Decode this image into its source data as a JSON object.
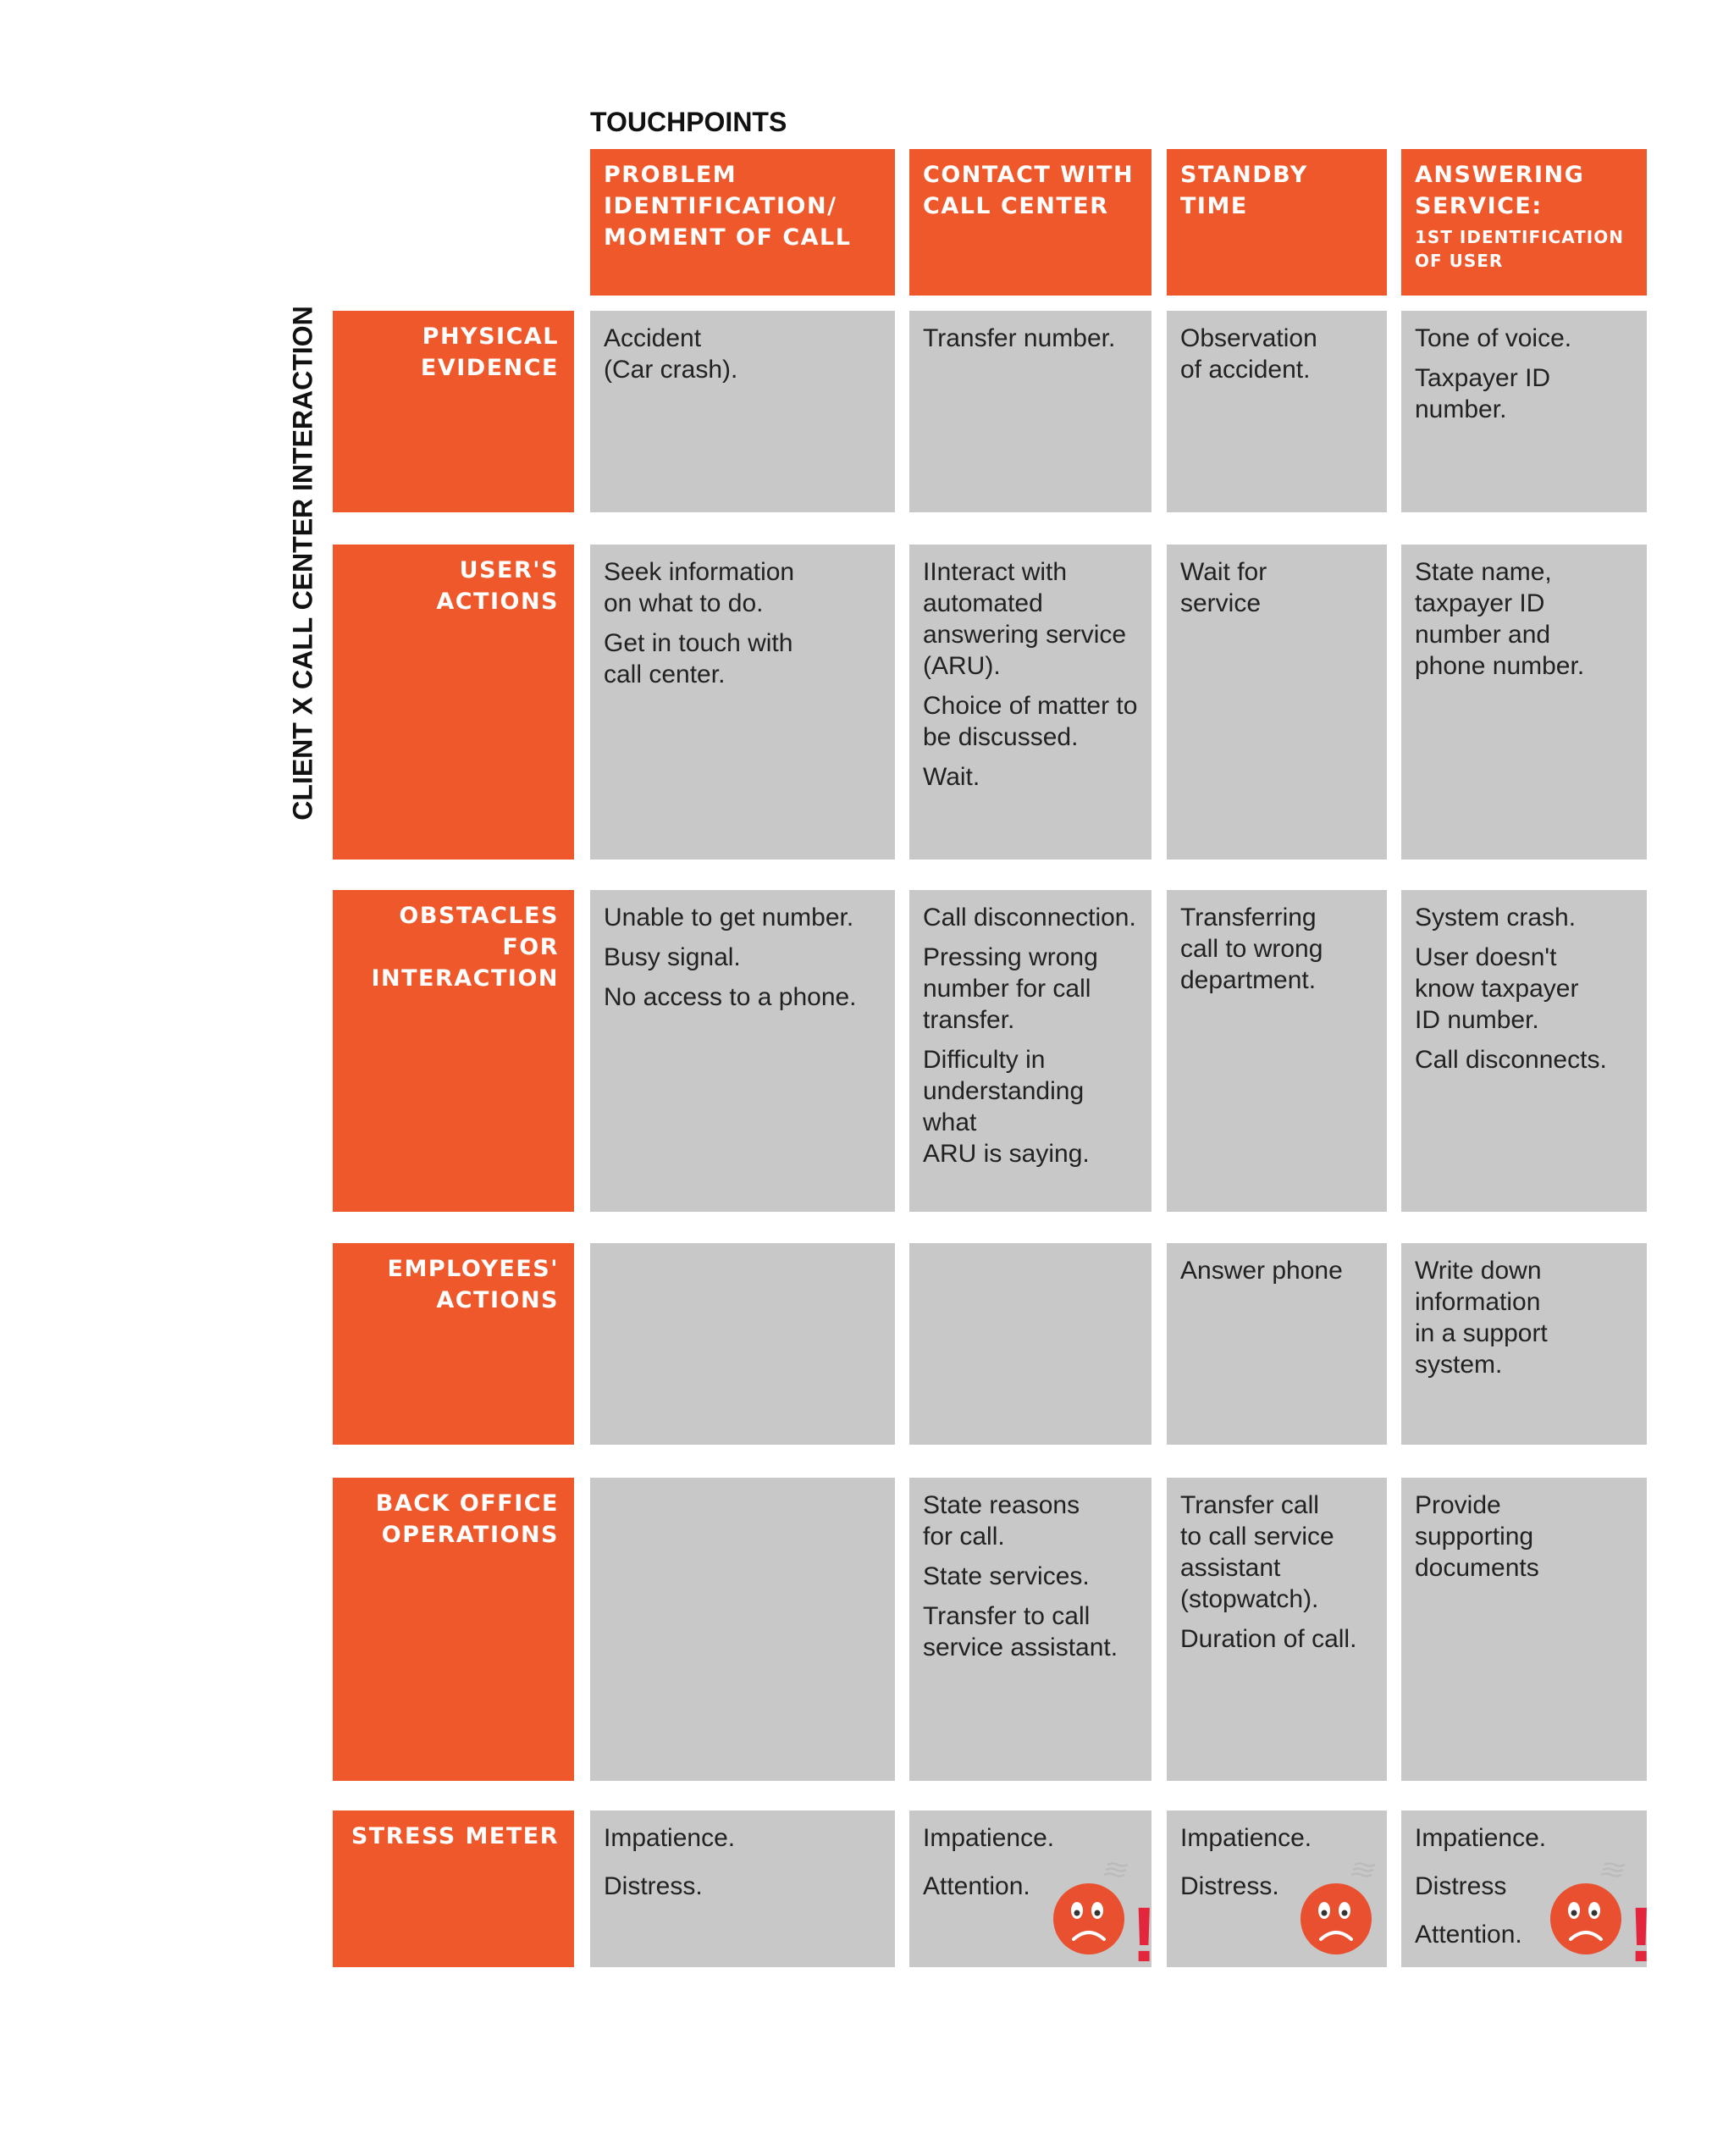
{
  "side_title": "CLIENT X CALL CENTER INTERACTION",
  "touchpoints_title": "TOUCHPOINTS",
  "columns": [
    {
      "label": "PROBLEM\nIDENTIFICATION/\nMOMENT OF CALL",
      "sub": ""
    },
    {
      "label": "CONTACT WITH\nCALL CENTER",
      "sub": ""
    },
    {
      "label": "STANDBY TIME",
      "sub": ""
    },
    {
      "label": "ANSWERING\nSERVICE:",
      "sub": "1ST IDENTIFICATION\nOF USER"
    }
  ],
  "rows": [
    {
      "label": "PHYSICAL\nEVIDENCE",
      "cells": [
        [
          "Accident\n(Car crash)."
        ],
        [
          "Transfer number."
        ],
        [
          "Observation\nof accident."
        ],
        [
          "Tone of voice.",
          "Taxpayer ID\nnumber."
        ]
      ]
    },
    {
      "label": "USER'S ACTIONS",
      "cells": [
        [
          "Seek information\non what to do.",
          "Get in touch with\ncall center."
        ],
        [
          "IInteract with\nautomated\nanswering service\n(ARU).",
          "Choice of matter to\nbe discussed.",
          "Wait."
        ],
        [
          "Wait for\nservice"
        ],
        [
          "State name,\ntaxpayer ID\nnumber and\nphone number."
        ]
      ]
    },
    {
      "label": "OBSTACLES FOR\nINTERACTION",
      "cells": [
        [
          "Unable to get number.",
          "Busy signal.",
          "No access to a phone."
        ],
        [
          "Call disconnection.",
          "Pressing wrong\nnumber for call\ntransfer.",
          "Difficulty in\nunderstanding what\nARU is saying."
        ],
        [
          "Transferring\ncall to wrong\ndepartment."
        ],
        [
          "System crash.",
          "User doesn't\nknow taxpayer\nID number.",
          "Call disconnects."
        ]
      ]
    },
    {
      "label": "EMPLOYEES'\nACTIONS",
      "cells": [
        [],
        [],
        [
          "Answer phone"
        ],
        [
          "Write down\ninformation\nin a support\nsystem."
        ]
      ]
    },
    {
      "label": "BACK OFFICE\nOPERATIONS",
      "cells": [
        [],
        [
          "State reasons\nfor call.",
          "State services.",
          "Transfer to call\nservice assistant."
        ],
        [
          "Transfer call\nto call service\nassistant\n(stopwatch).",
          "Duration of call."
        ],
        [
          "Provide\nsupporting\ndocuments"
        ]
      ]
    },
    {
      "label": "STRESS METER",
      "cells": [
        [
          "Impatience.",
          "Distress."
        ],
        [
          "Impatience.",
          "Attention."
        ],
        [
          "Impatience.",
          "Distress."
        ],
        [
          "Impatience.",
          "Distress",
          "Attention."
        ]
      ]
    }
  ],
  "stress_faces": [
    {
      "col": 1,
      "icon": "sad-face-icon",
      "exclaim": "!"
    },
    {
      "col": 2,
      "icon": "sad-face-icon",
      "exclaim": ""
    },
    {
      "col": 3,
      "icon": "sad-face-icon",
      "exclaim": "!"
    }
  ],
  "colors": {
    "orange": "#EE582B",
    "gray": "#C8C8C8",
    "face": "#E9502F",
    "exclaim": "#E3263B"
  }
}
